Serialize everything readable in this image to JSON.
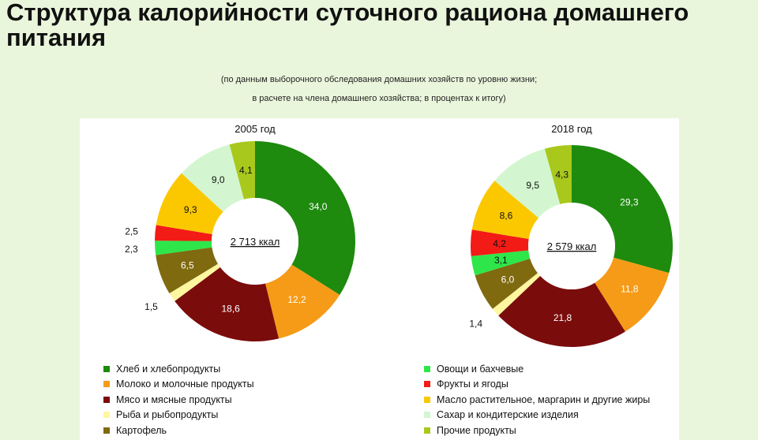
{
  "title": "Структура калорийности суточного рациона домашнего питания",
  "subtitle_lines": [
    "(по данным выборочного обследования домашних хозяйств по уровню жизни;",
    "в расчете на члена домашнего хозяйства; в процентах к итогу)"
  ],
  "chart_data": [
    {
      "type": "pie",
      "title": "2005 год",
      "center_label": "2 713 ккал",
      "slices": [
        {
          "label": "Хлеб и хлебопродукты",
          "value": 34.0,
          "text": "34,0",
          "color": "#1e8a0e"
        },
        {
          "label": "Молоко и молочные продукты",
          "value": 12.2,
          "text": "12,2",
          "color": "#f59b17"
        },
        {
          "label": "Мясо и мясные продукты",
          "value": 18.6,
          "text": "18,6",
          "color": "#7a0c0c"
        },
        {
          "label": "Рыба и рыбопродукты",
          "value": 1.5,
          "text": "1,5",
          "color": "#fff6a0"
        },
        {
          "label": "Картофель",
          "value": 6.5,
          "text": "6,5",
          "color": "#7f6a10"
        },
        {
          "label": "Овощи и бахчевые",
          "value": 2.3,
          "text": "2,3",
          "color": "#2ee64a"
        },
        {
          "label": "Фрукты и ягоды",
          "value": 2.5,
          "text": "2,5",
          "color": "#f21b16"
        },
        {
          "label": "Масло растительное, маргарин и другие жиры",
          "value": 9.3,
          "text": "9,3",
          "color": "#fbc800"
        },
        {
          "label": "Сахар и кондитерские изделия",
          "value": 9.0,
          "text": "9,0",
          "color": "#d3f6d0"
        },
        {
          "label": "Прочие продукты",
          "value": 4.1,
          "text": "4,1",
          "color": "#a8c81c"
        }
      ]
    },
    {
      "type": "pie",
      "title": "2018 год",
      "center_label": "2 579 ккал",
      "slices": [
        {
          "label": "Хлеб и хлебопродукты",
          "value": 29.3,
          "text": "29,3",
          "color": "#1e8a0e"
        },
        {
          "label": "Молоко и молочные продукты",
          "value": 11.8,
          "text": "11,8",
          "color": "#f59b17"
        },
        {
          "label": "Мясо и мясные продукты",
          "value": 21.8,
          "text": "21,8",
          "color": "#7a0c0c"
        },
        {
          "label": "Рыба и рыбопродукты",
          "value": 1.4,
          "text": "1,4",
          "color": "#fff6a0"
        },
        {
          "label": "Картофель",
          "value": 6.0,
          "text": "6,0",
          "color": "#7f6a10"
        },
        {
          "label": "Овощи и бахчевые",
          "value": 3.1,
          "text": "3,1",
          "color": "#2ee64a"
        },
        {
          "label": "Фрукты и ягоды",
          "value": 4.2,
          "text": "4,2",
          "color": "#f21b16"
        },
        {
          "label": "Масло растительное, маргарин и другие жиры",
          "value": 8.6,
          "text": "8,6",
          "color": "#fbc800"
        },
        {
          "label": "Сахар и кондитерские изделия",
          "value": 9.5,
          "text": "9,5",
          "color": "#d3f6d0"
        },
        {
          "label": "Прочие продукты",
          "value": 4.3,
          "text": "4,3",
          "color": "#a8c81c"
        }
      ]
    }
  ],
  "legend": {
    "left": [
      {
        "label": "Хлеб и хлебопродукты",
        "color": "#1e8a0e"
      },
      {
        "label": "Молоко и молочные продукты",
        "color": "#f59b17"
      },
      {
        "label": "Мясо и мясные продукты",
        "color": "#7a0c0c"
      },
      {
        "label": "Рыба и рыбопродукты",
        "color": "#fff6a0"
      },
      {
        "label": "Картофель",
        "color": "#7f6a10"
      }
    ],
    "right": [
      {
        "label": "Овощи и бахчевые",
        "color": "#2ee64a"
      },
      {
        "label": "Фрукты и ягоды",
        "color": "#f21b16"
      },
      {
        "label": "Масло растительное, маргарин и другие жиры",
        "color": "#fbc800"
      },
      {
        "label": "Сахар и кондитерские изделия",
        "color": "#d3f6d0"
      },
      {
        "label": "Прочие продукты",
        "color": "#a8c81c"
      }
    ]
  }
}
